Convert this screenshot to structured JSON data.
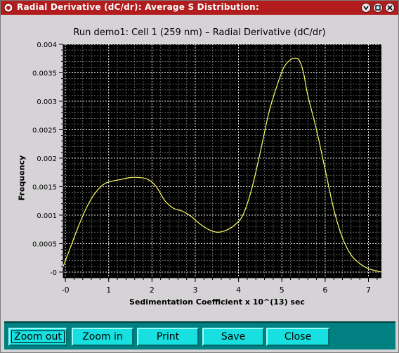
{
  "window": {
    "title": "Radial Derivative (dC/dr): Average S Distribution:"
  },
  "titlebar_buttons": [
    "minimize-icon",
    "maximize-icon",
    "close-icon"
  ],
  "buttons": [
    {
      "label": "Zoom out",
      "name": "zoom-out-button"
    },
    {
      "label": "Zoom in",
      "name": "zoom-in-button"
    },
    {
      "label": "Print",
      "name": "print-button"
    },
    {
      "label": "Save",
      "name": "save-button"
    },
    {
      "label": "Close",
      "name": "close-button"
    }
  ],
  "colors": {
    "titlebar": "#b21c1c",
    "plot_background": "#000000",
    "curve": "#ffff66",
    "grid": "#ffffff",
    "button_bar": "#008080",
    "button": "#18e0e0"
  },
  "chart_data": {
    "type": "line",
    "title": "Run demo1: Cell 1 (259 nm) – Radial Derivative (dC/dr)",
    "xlabel": "Sedimentation Coefficient x 10^(13) sec",
    "ylabel": "Frequency",
    "xlim": [
      -0.05,
      7.3
    ],
    "ylim": [
      -0.0001,
      0.004
    ],
    "xticks": [
      0,
      1,
      2,
      3,
      4,
      5,
      6,
      7
    ],
    "xtick_labels": [
      "-0",
      "1",
      "2",
      "3",
      "4",
      "5",
      "6",
      "7"
    ],
    "yticks": [
      0,
      0.0005,
      0.001,
      0.0015,
      0.002,
      0.0025,
      0.003,
      0.0035,
      0.004
    ],
    "ytick_labels": [
      "-0",
      "0.0005",
      "0.001",
      "0.0015",
      "0.002",
      "0.0025",
      "0.003",
      "0.0035",
      "0.004"
    ],
    "grid": true,
    "series": [
      {
        "x": [
          -0.05,
          0.1,
          0.3,
          0.5,
          0.7,
          0.9,
          1.1,
          1.3,
          1.5,
          1.7,
          1.9,
          2.1,
          2.3,
          2.5,
          2.7,
          2.9,
          3.1,
          3.3,
          3.5,
          3.7,
          3.9,
          4.1,
          4.3,
          4.5,
          4.7,
          4.9,
          5.05,
          5.2,
          5.3,
          5.4,
          5.5,
          5.6,
          5.8,
          6.0,
          6.2,
          6.4,
          6.6,
          6.8,
          7.0,
          7.3
        ],
        "y": [
          0.0001,
          0.0004,
          0.0008,
          0.00115,
          0.0014,
          0.00155,
          0.0016,
          0.00163,
          0.00166,
          0.00166,
          0.00163,
          0.0015,
          0.00125,
          0.00112,
          0.00107,
          0.00098,
          0.00085,
          0.00075,
          0.0007,
          0.00073,
          0.00082,
          0.001,
          0.00145,
          0.0021,
          0.0028,
          0.0033,
          0.0036,
          0.00373,
          0.00375,
          0.00372,
          0.0035,
          0.0031,
          0.0025,
          0.0018,
          0.0011,
          0.0006,
          0.0003,
          0.00015,
          6e-05,
          0.0
        ]
      }
    ]
  }
}
